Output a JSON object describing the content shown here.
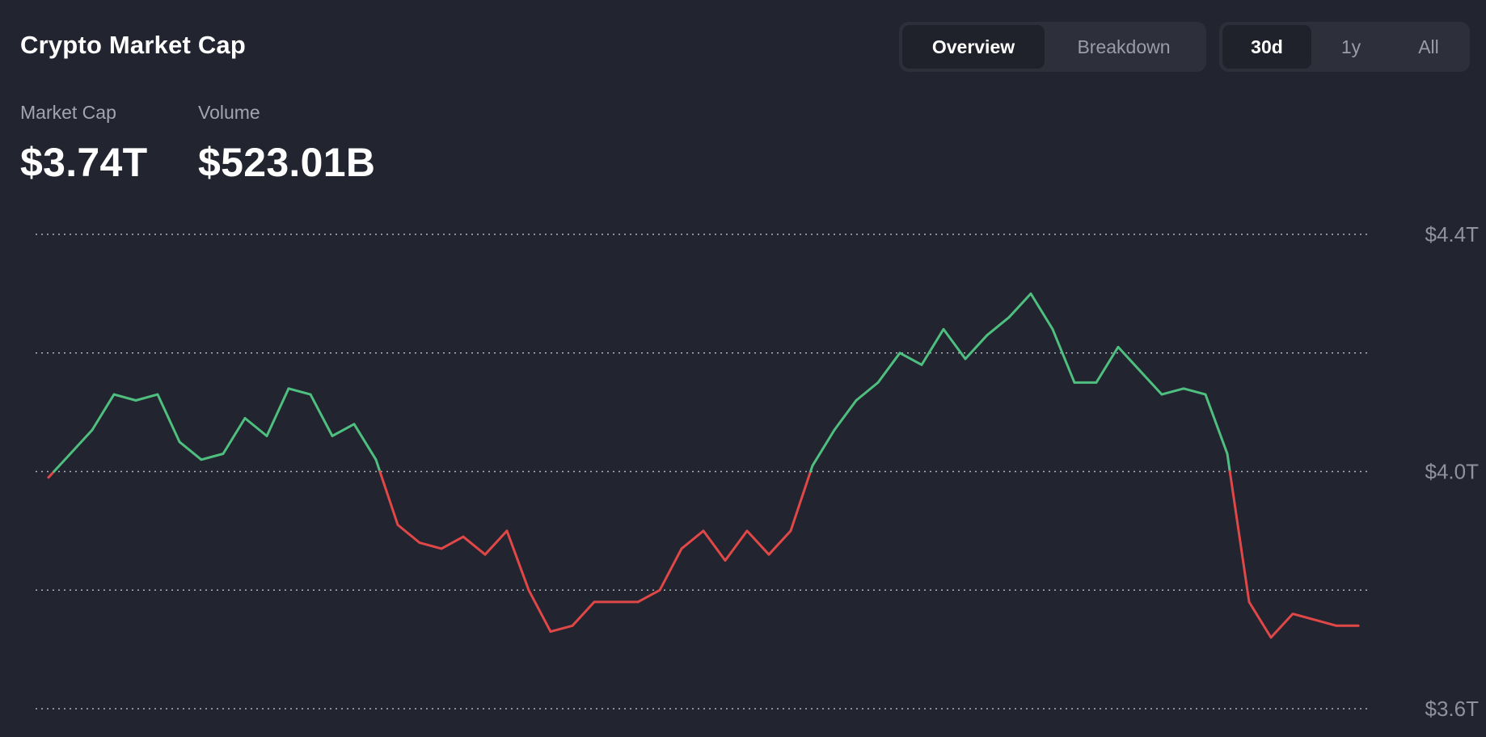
{
  "header": {
    "title": "Crypto Market Cap"
  },
  "view_toggle": {
    "options": [
      "Overview",
      "Breakdown"
    ],
    "selected": "Overview"
  },
  "range_toggle": {
    "options": [
      "30d",
      "1y",
      "All"
    ],
    "selected": "30d"
  },
  "stats": {
    "market_cap_label": "Market Cap",
    "market_cap_value": "$3.74T",
    "volume_label": "Volume",
    "volume_value": "$523.01B"
  },
  "colors": {
    "background": "#222430",
    "up": "#4fbf7f",
    "down": "#e04848",
    "grid": "#c8c9d0"
  },
  "chart_data": {
    "type": "line",
    "title": "",
    "xlabel": "",
    "ylabel": "",
    "ylim": [
      3.6,
      4.4
    ],
    "yticks": [
      {
        "value": 4.4,
        "label": "$4.4T"
      },
      {
        "value": 4.0,
        "label": "$4.0T"
      },
      {
        "value": 3.6,
        "label": "$3.6T"
      }
    ],
    "gridlines": [
      4.4,
      4.2,
      4.0,
      3.8,
      3.6
    ],
    "baseline": 4.0,
    "grid": true,
    "x": [
      0,
      0.5,
      1,
      1.5,
      2,
      2.5,
      3,
      3.5,
      4,
      4.5,
      5,
      5.5,
      6,
      6.5,
      7,
      7.5,
      8,
      8.5,
      9,
      9.5,
      10,
      10.5,
      11,
      11.5,
      12,
      12.5,
      13,
      13.5,
      14,
      14.5,
      15,
      15.5,
      16,
      16.5,
      17,
      17.5,
      18,
      18.5,
      19,
      19.5,
      20,
      20.5,
      21,
      21.5,
      22,
      22.5,
      23,
      23.5,
      24,
      24.5,
      25,
      25.5,
      26,
      26.5,
      27,
      27.5,
      28,
      28.5,
      29,
      29.5,
      30
    ],
    "values": [
      3.99,
      4.03,
      4.07,
      4.13,
      4.12,
      4.13,
      4.05,
      4.02,
      4.03,
      4.09,
      4.06,
      4.14,
      4.13,
      4.06,
      4.08,
      4.02,
      3.91,
      3.88,
      3.87,
      3.89,
      3.86,
      3.9,
      3.8,
      3.73,
      3.74,
      3.78,
      3.78,
      3.78,
      3.8,
      3.87,
      3.9,
      3.85,
      3.9,
      3.86,
      3.9,
      4.01,
      4.07,
      4.12,
      4.15,
      4.2,
      4.18,
      4.24,
      4.19,
      4.23,
      4.26,
      4.3,
      4.24,
      4.15,
      4.15,
      4.21,
      4.17,
      4.13,
      4.14,
      4.13,
      4.03,
      3.78,
      3.72,
      3.76,
      3.75,
      3.74,
      3.74
    ]
  }
}
